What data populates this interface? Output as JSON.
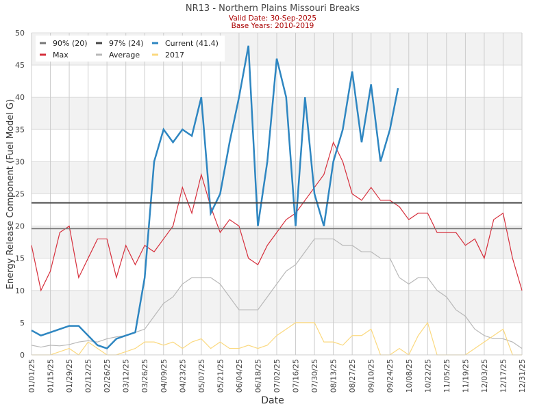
{
  "chart_data": {
    "type": "line",
    "title": "NR13 - Northern Plains Missouri Breaks",
    "subtitle1": "Valid Date: 30-Sep-2025",
    "subtitle2": "Base Years: 2010-2019",
    "xlabel": "Date",
    "ylabel": "Energy Release Component (Fuel Model G)",
    "ylim": [
      0,
      50
    ],
    "yticks": [
      "0",
      "5",
      "10",
      "15",
      "20",
      "25",
      "30",
      "35",
      "40",
      "45",
      "50"
    ],
    "xticks": [
      "01/01/25",
      "01/15/25",
      "01/29/25",
      "02/12/25",
      "02/26/25",
      "03/12/25",
      "03/26/25",
      "04/09/25",
      "04/23/25",
      "05/07/25",
      "05/21/25",
      "06/04/25",
      "06/18/25",
      "07/02/25",
      "07/16/25",
      "07/30/25",
      "08/13/25",
      "08/27/25",
      "09/10/25",
      "09/24/25",
      "10/08/25",
      "10/22/25",
      "11/05/25",
      "11/19/25",
      "12/03/25",
      "12/17/25",
      "12/31/25"
    ],
    "x_day_step": 7,
    "legend": [
      "90% (20)",
      "97% (24)",
      "Current (41.4)",
      "Max",
      "Average",
      "2017"
    ],
    "legend_placement": "top-left",
    "thresholds": [
      {
        "name": "90% (20)",
        "value": 19.6,
        "color": "#777777"
      },
      {
        "name": "97% (24)",
        "value": 23.6,
        "color": "#444444"
      }
    ],
    "series": [
      {
        "name": "Max",
        "color": "#d62f3c",
        "values": [
          17,
          10,
          13,
          19,
          20,
          12,
          15,
          18,
          18,
          12,
          17,
          14,
          17,
          16,
          18,
          20,
          26,
          22,
          28,
          23,
          19,
          21,
          20,
          15,
          14,
          17,
          19,
          21,
          22,
          24,
          26,
          28,
          33,
          30,
          25,
          24,
          26,
          24,
          24,
          23,
          21,
          22,
          22,
          19,
          19,
          19,
          17,
          18,
          15,
          21,
          22,
          15,
          10
        ]
      },
      {
        "name": "Average",
        "color": "#b8b8b8",
        "values": [
          1.5,
          1.2,
          1.5,
          1.4,
          1.6,
          2,
          2.2,
          2,
          2.5,
          2.8,
          3,
          3.5,
          4,
          6,
          8,
          9,
          11,
          12,
          12,
          12,
          11,
          9,
          7,
          7,
          7,
          9,
          11,
          13,
          14,
          16,
          18,
          18,
          18,
          17,
          17,
          16,
          16,
          15,
          15,
          12,
          11,
          12,
          12,
          10,
          9,
          7,
          6,
          4,
          3,
          2.5,
          2.5,
          2,
          1
        ]
      },
      {
        "name": "2017",
        "color": "#fbd97f",
        "values": [
          0,
          0,
          0,
          0.5,
          1,
          0,
          2,
          1,
          0,
          0,
          0.5,
          1,
          2,
          2,
          1.5,
          2,
          1,
          2,
          2.5,
          1,
          2,
          1,
          1,
          1.5,
          1,
          1.5,
          3,
          4,
          5,
          5,
          5,
          2,
          2,
          1.5,
          3,
          3,
          4,
          0,
          0,
          1,
          0,
          3,
          5,
          0,
          0,
          0,
          0,
          1,
          2,
          3,
          4,
          0,
          0
        ]
      },
      {
        "name": "Current (41.4)",
        "color": "#2e86c1",
        "values": [
          3.8,
          3,
          3.5,
          4,
          4.5,
          4.5,
          3,
          1.5,
          1,
          2.5,
          3,
          3.5,
          12,
          30,
          35,
          33,
          35,
          34,
          40,
          22,
          25,
          33,
          40,
          48,
          20,
          30,
          46,
          40,
          20,
          40,
          25,
          20,
          30,
          35,
          44,
          33,
          42,
          30,
          35,
          41.4
        ]
      }
    ]
  }
}
